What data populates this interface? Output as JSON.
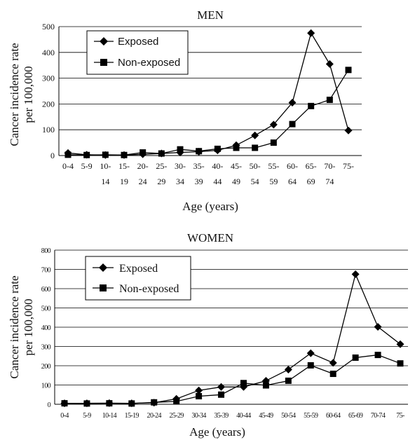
{
  "chart_data": [
    {
      "type": "line",
      "title": "MEN",
      "xlabel": "Age (years)",
      "ylabel": "Cancer incidence rate per 100,000",
      "ylabel_lines": [
        "Cancer incidence rate",
        "per 100,000"
      ],
      "ylim": [
        0,
        500
      ],
      "yticks": [
        0,
        100,
        200,
        300,
        400,
        500
      ],
      "grid": true,
      "legend_position": "top-left",
      "categories": [
        [
          "0-4",
          ""
        ],
        [
          "5-9",
          ""
        ],
        [
          "10-",
          "14"
        ],
        [
          "15-",
          "19"
        ],
        [
          "20-",
          "24"
        ],
        [
          "25-",
          "29"
        ],
        [
          "30-",
          "34"
        ],
        [
          "35-",
          "39"
        ],
        [
          "40-",
          "44"
        ],
        [
          "45-",
          "49"
        ],
        [
          "50-",
          "54"
        ],
        [
          "55-",
          "59"
        ],
        [
          "60-",
          "64"
        ],
        [
          "65-",
          "69"
        ],
        [
          "70-",
          "74"
        ],
        [
          "75-",
          ""
        ]
      ],
      "series": [
        {
          "name": "Exposed",
          "marker": "diamond",
          "values": [
            10,
            3,
            2,
            2,
            5,
            8,
            12,
            15,
            20,
            40,
            78,
            120,
            205,
            475,
            355,
            97
          ]
        },
        {
          "name": "Non-exposed",
          "marker": "square",
          "values": [
            3,
            2,
            3,
            2,
            12,
            8,
            24,
            17,
            26,
            30,
            30,
            50,
            122,
            192,
            216,
            332
          ]
        }
      ]
    },
    {
      "type": "line",
      "title": "WOMEN",
      "xlabel": "Age (years)",
      "ylabel": "Cancer incidence rate per 100,000",
      "ylabel_lines": [
        "Cancer incidence rate",
        "per 100,000"
      ],
      "ylim": [
        0,
        800
      ],
      "yticks": [
        0,
        100,
        200,
        300,
        400,
        500,
        600,
        700,
        800
      ],
      "grid": true,
      "legend_position": "top-left",
      "categories": [
        "0-4",
        "5-9",
        "10-14",
        "15-19",
        "20-24",
        "25-29",
        "30-34",
        "35-39",
        "40-44",
        "45-49",
        "50-54",
        "55-59",
        "60-64",
        "65-69",
        "70-74",
        "75-"
      ],
      "series": [
        {
          "name": "Exposed",
          "marker": "diamond",
          "values": [
            5,
            5,
            6,
            5,
            8,
            28,
            72,
            90,
            90,
            122,
            180,
            265,
            215,
            675,
            402,
            312
          ]
        },
        {
          "name": "Non-exposed",
          "marker": "square",
          "values": [
            5,
            4,
            5,
            4,
            10,
            15,
            42,
            50,
            110,
            98,
            122,
            202,
            158,
            242,
            256,
            212
          ]
        }
      ]
    }
  ]
}
